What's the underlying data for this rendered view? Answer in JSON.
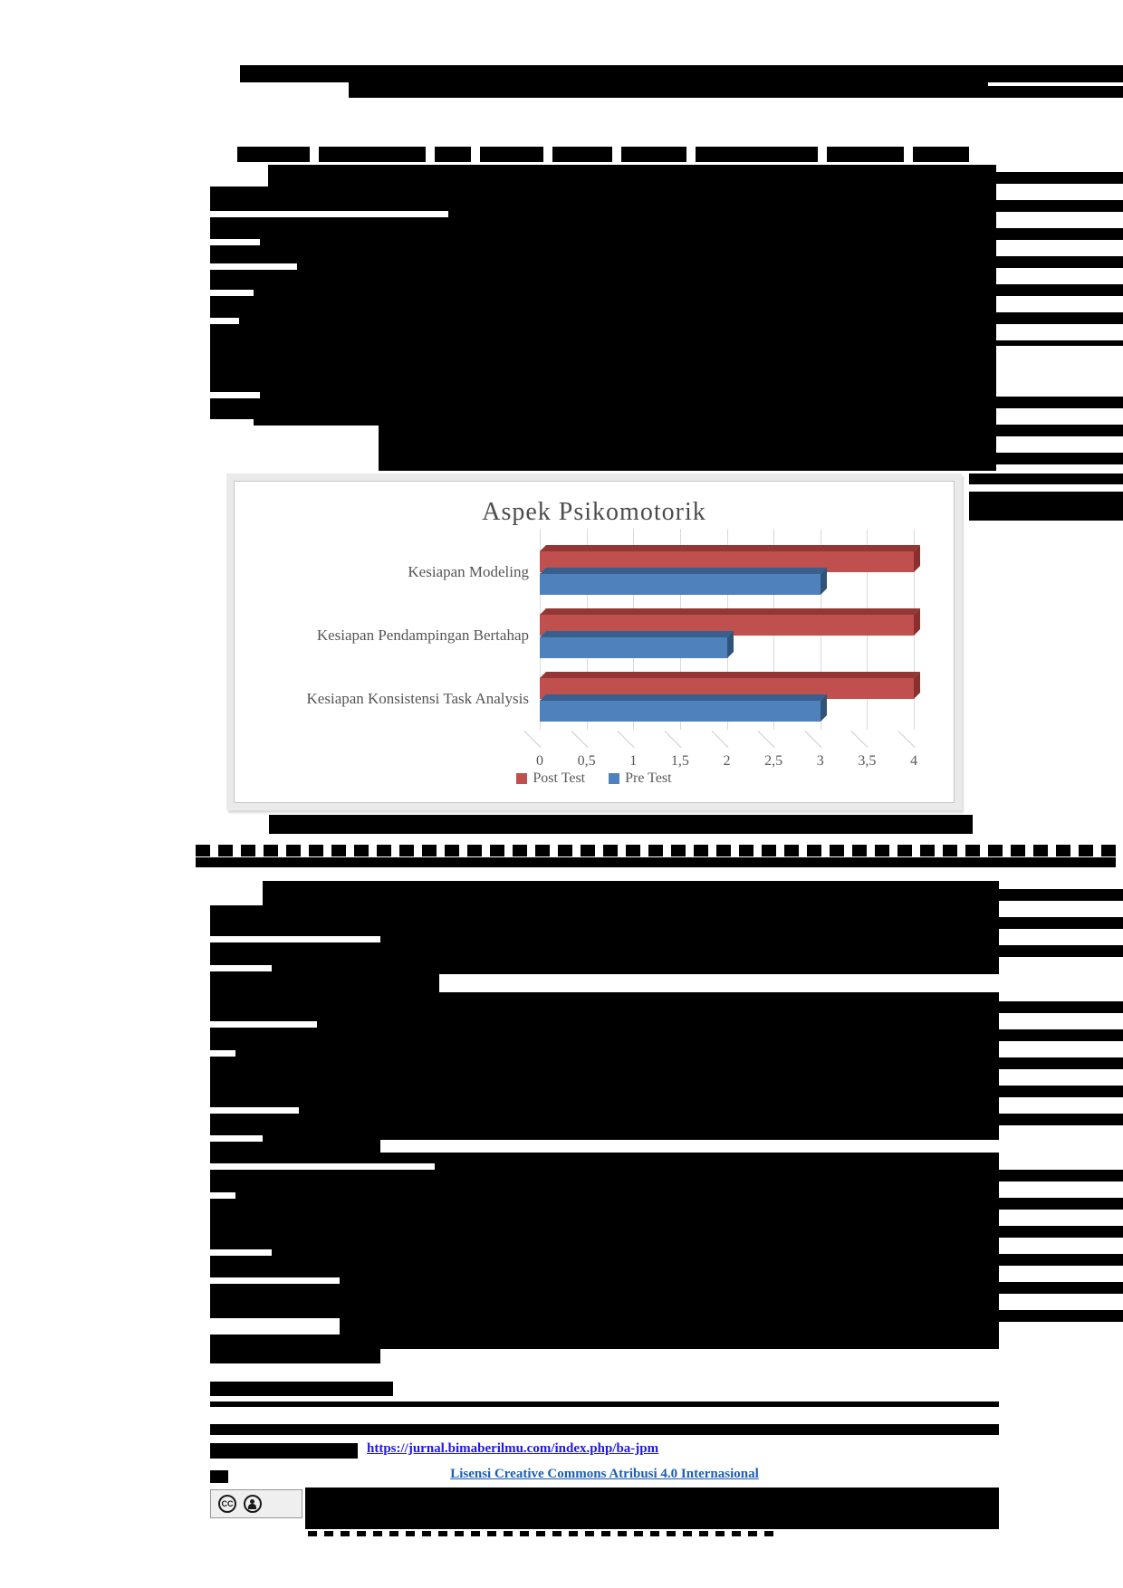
{
  "chart_data": {
    "type": "bar",
    "orientation": "horizontal",
    "style": "3d",
    "title": "Aspek Psikomotorik",
    "categories": [
      "Kesiapan Modeling",
      "Kesiapan Pendampingan Bertahap",
      "Kesiapan Konsistensi Task Analysis"
    ],
    "series": [
      {
        "name": "Post Test",
        "color": "#C0504D",
        "values": [
          4,
          4,
          4
        ]
      },
      {
        "name": "Pre Test",
        "color": "#4F81BD",
        "values": [
          3,
          2,
          3
        ]
      }
    ],
    "xlim": [
      0,
      4
    ],
    "xticks": [
      "0",
      "0,5",
      "1",
      "1,5",
      "2",
      "2,5",
      "3",
      "3,5",
      "4"
    ],
    "grid": true,
    "legend_position": "bottom"
  },
  "footer": {
    "journal_url": "https://jurnal.bimaberilmu.com/index.php/ba-jpm",
    "license_text": "Lisensi Creative Commons Atribusi 4.0 Internasional",
    "cc_badge_icons": [
      "cc-circle-icon",
      "cc-by-person-icon"
    ]
  },
  "colors": {
    "post_test": "#C0504D",
    "pre_test": "#4F81BD",
    "url_link": "#2117E8",
    "license_link": "#1B5EB4",
    "redaction": "#000000",
    "chart_text": "#595959"
  }
}
